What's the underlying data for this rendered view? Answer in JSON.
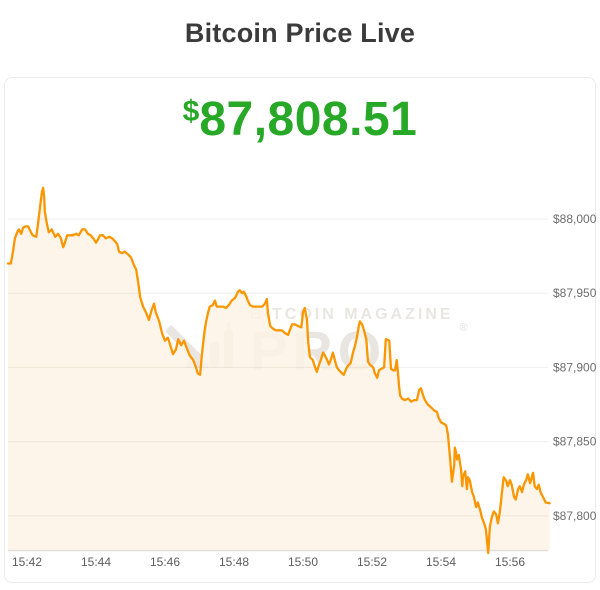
{
  "header": {
    "title": "Bitcoin Price Live"
  },
  "price": {
    "currency_symbol": "$",
    "value": "87,808.51",
    "color": "#27a827"
  },
  "watermark": {
    "line1": "BITCOIN MAGAZINE",
    "line2": "PRO",
    "registered": "®"
  },
  "colors": {
    "line": "#fa9600",
    "fill": "#fcf3e4",
    "grid": "#edebe8",
    "axis_line": "#e3ded7",
    "y_label": "#6d6d6d",
    "x_label": "#5c5c5c",
    "title": "#3b3b3b",
    "price_green": "#27a827",
    "watermark_gray": "#e9e6e2",
    "card_border": "#ececec"
  },
  "chart_data": {
    "type": "area",
    "title": "Bitcoin price, live intraday",
    "xlabel": "",
    "ylabel": "",
    "legend": "none",
    "grid": true,
    "y_axis_position": "right",
    "x_unit": "seconds after 15:40:00",
    "x_range": [
      87,
      1029
    ],
    "y_range": [
      87777,
      88033
    ],
    "x_ticks": [
      {
        "t": 120,
        "label": "15:42"
      },
      {
        "t": 240,
        "label": "15:44"
      },
      {
        "t": 360,
        "label": "15:46"
      },
      {
        "t": 480,
        "label": "15:48"
      },
      {
        "t": 600,
        "label": "15:50"
      },
      {
        "t": 720,
        "label": "15:52"
      },
      {
        "t": 840,
        "label": "15:54"
      },
      {
        "t": 960,
        "label": "15:56"
      }
    ],
    "y_ticks": [
      {
        "value": 88000,
        "label": "$88,000"
      },
      {
        "value": 87950,
        "label": "$87,950"
      },
      {
        "value": 87900,
        "label": "$87,900"
      },
      {
        "value": 87850,
        "label": "$87,850"
      },
      {
        "value": 87800,
        "label": "$87,800"
      }
    ],
    "points": [
      [
        87,
        87970
      ],
      [
        92,
        87970
      ],
      [
        96,
        87979
      ],
      [
        99,
        87987
      ],
      [
        103,
        87991
      ],
      [
        106,
        87993
      ],
      [
        110,
        87990
      ],
      [
        113,
        87994
      ],
      [
        117,
        87995
      ],
      [
        122,
        87995
      ],
      [
        127,
        87991
      ],
      [
        130,
        87989
      ],
      [
        136,
        87988
      ],
      [
        139,
        87996
      ],
      [
        143,
        88009
      ],
      [
        146,
        88018
      ],
      [
        148,
        88021
      ],
      [
        150,
        88015
      ],
      [
        151,
        88005
      ],
      [
        155,
        87996
      ],
      [
        158,
        87991
      ],
      [
        163,
        87993
      ],
      [
        169,
        87988
      ],
      [
        174,
        87990
      ],
      [
        179,
        87987
      ],
      [
        183,
        87981
      ],
      [
        186,
        87984
      ],
      [
        190,
        87989
      ],
      [
        195,
        87989
      ],
      [
        200,
        87989
      ],
      [
        205,
        87990
      ],
      [
        210,
        87989
      ],
      [
        216,
        87993
      ],
      [
        221,
        87993
      ],
      [
        226,
        87990
      ],
      [
        231,
        87989
      ],
      [
        237,
        87986
      ],
      [
        240,
        87984
      ],
      [
        243,
        87986
      ],
      [
        247,
        87989
      ],
      [
        252,
        87989
      ],
      [
        257,
        87987
      ],
      [
        263,
        87988
      ],
      [
        268,
        87987
      ],
      [
        273,
        87985
      ],
      [
        277,
        87983
      ],
      [
        280,
        87978
      ],
      [
        285,
        87977
      ],
      [
        290,
        87978
      ],
      [
        296,
        87976
      ],
      [
        301,
        87974
      ],
      [
        306,
        87969
      ],
      [
        310,
        87966
      ],
      [
        313,
        87958
      ],
      [
        317,
        87947
      ],
      [
        322,
        87941
      ],
      [
        327,
        87937
      ],
      [
        332,
        87932
      ],
      [
        337,
        87939
      ],
      [
        341,
        87943
      ],
      [
        344,
        87937
      ],
      [
        350,
        87931
      ],
      [
        355,
        87923
      ],
      [
        360,
        87918
      ],
      [
        365,
        87920
      ],
      [
        370,
        87914
      ],
      [
        374,
        87909
      ],
      [
        379,
        87912
      ],
      [
        383,
        87919
      ],
      [
        388,
        87915
      ],
      [
        393,
        87918
      ],
      [
        398,
        87913
      ],
      [
        403,
        87908
      ],
      [
        409,
        87905
      ],
      [
        414,
        87900
      ],
      [
        417,
        87896
      ],
      [
        421,
        87895
      ],
      [
        424,
        87908
      ],
      [
        428,
        87922
      ],
      [
        431,
        87930
      ],
      [
        435,
        87937
      ],
      [
        438,
        87941
      ],
      [
        443,
        87942
      ],
      [
        447,
        87945
      ],
      [
        450,
        87941
      ],
      [
        456,
        87941
      ],
      [
        461,
        87941
      ],
      [
        466,
        87940
      ],
      [
        471,
        87942
      ],
      [
        476,
        87945
      ],
      [
        482,
        87947
      ],
      [
        487,
        87951
      ],
      [
        490,
        87952
      ],
      [
        494,
        87950
      ],
      [
        497,
        87951
      ],
      [
        501,
        87948
      ],
      [
        504,
        87945
      ],
      [
        508,
        87942
      ],
      [
        513,
        87941
      ],
      [
        518,
        87941
      ],
      [
        523,
        87941
      ],
      [
        529,
        87941
      ],
      [
        534,
        87943
      ],
      [
        537,
        87946
      ],
      [
        539,
        87937
      ],
      [
        543,
        87928
      ],
      [
        548,
        87926
      ],
      [
        553,
        87925
      ],
      [
        558,
        87925
      ],
      [
        563,
        87925
      ],
      [
        569,
        87923
      ],
      [
        574,
        87922
      ],
      [
        577,
        87925
      ],
      [
        581,
        87929
      ],
      [
        586,
        87929
      ],
      [
        591,
        87928
      ],
      [
        597,
        87927
      ],
      [
        600,
        87937
      ],
      [
        603,
        87940
      ],
      [
        607,
        87932
      ],
      [
        609,
        87917
      ],
      [
        612,
        87907
      ],
      [
        617,
        87905
      ],
      [
        621,
        87900
      ],
      [
        624,
        87897
      ],
      [
        628,
        87902
      ],
      [
        631,
        87905
      ],
      [
        635,
        87910
      ],
      [
        638,
        87908
      ],
      [
        642,
        87905
      ],
      [
        645,
        87902
      ],
      [
        649,
        87906
      ],
      [
        652,
        87910
      ],
      [
        656,
        87904
      ],
      [
        659,
        87900
      ],
      [
        663,
        87898
      ],
      [
        668,
        87896
      ],
      [
        671,
        87895
      ],
      [
        675,
        87899
      ],
      [
        678,
        87901
      ],
      [
        683,
        87903
      ],
      [
        687,
        87910
      ],
      [
        690,
        87914
      ],
      [
        694,
        87921
      ],
      [
        697,
        87928
      ],
      [
        699,
        87931
      ],
      [
        703,
        87929
      ],
      [
        706,
        87925
      ],
      [
        710,
        87919
      ],
      [
        713,
        87904
      ],
      [
        716,
        87902
      ],
      [
        722,
        87900
      ],
      [
        725,
        87896
      ],
      [
        729,
        87893
      ],
      [
        732,
        87898
      ],
      [
        736,
        87899
      ],
      [
        741,
        87900
      ],
      [
        744,
        87919
      ],
      [
        750,
        87918
      ],
      [
        753,
        87899
      ],
      [
        757,
        87898
      ],
      [
        760,
        87898
      ],
      [
        763,
        87905
      ],
      [
        765,
        87897
      ],
      [
        767,
        87888
      ],
      [
        769,
        87881
      ],
      [
        772,
        87879
      ],
      [
        777,
        87878
      ],
      [
        783,
        87879
      ],
      [
        788,
        87877
      ],
      [
        793,
        87878
      ],
      [
        798,
        87878
      ],
      [
        802,
        87885
      ],
      [
        805,
        87886
      ],
      [
        809,
        87881
      ],
      [
        812,
        87878
      ],
      [
        817,
        87875
      ],
      [
        823,
        87873
      ],
      [
        828,
        87871
      ],
      [
        833,
        87870
      ],
      [
        836,
        87866
      ],
      [
        840,
        87863
      ],
      [
        845,
        87862
      ],
      [
        849,
        87861
      ],
      [
        852,
        87855
      ],
      [
        856,
        87838
      ],
      [
        859,
        87823
      ],
      [
        863,
        87834
      ],
      [
        864,
        87846
      ],
      [
        866,
        87843
      ],
      [
        868,
        87838
      ],
      [
        871,
        87841
      ],
      [
        875,
        87831
      ],
      [
        877,
        87820
      ],
      [
        878,
        87826
      ],
      [
        882,
        87830
      ],
      [
        885,
        87818
      ],
      [
        887,
        87826
      ],
      [
        890,
        87824
      ],
      [
        894,
        87816
      ],
      [
        897,
        87813
      ],
      [
        901,
        87806
      ],
      [
        904,
        87809
      ],
      [
        908,
        87804
      ],
      [
        911,
        87799
      ],
      [
        915,
        87795
      ],
      [
        918,
        87791
      ],
      [
        922,
        87775
      ],
      [
        923,
        87780
      ],
      [
        925,
        87793
      ],
      [
        929,
        87800
      ],
      [
        932,
        87803
      ],
      [
        936,
        87801
      ],
      [
        939,
        87795
      ],
      [
        942,
        87802
      ],
      [
        946,
        87816
      ],
      [
        949,
        87826
      ],
      [
        953,
        87824
      ],
      [
        956,
        87820
      ],
      [
        960,
        87824
      ],
      [
        963,
        87821
      ],
      [
        967,
        87813
      ],
      [
        970,
        87811
      ],
      [
        974,
        87818
      ],
      [
        977,
        87820
      ],
      [
        981,
        87816
      ],
      [
        984,
        87821
      ],
      [
        988,
        87824
      ],
      [
        991,
        87828
      ],
      [
        995,
        87822
      ],
      [
        1000,
        87829
      ],
      [
        1003,
        87820
      ],
      [
        1007,
        87818
      ],
      [
        1010,
        87821
      ],
      [
        1013,
        87816
      ],
      [
        1017,
        87813
      ],
      [
        1022,
        87809
      ],
      [
        1029,
        87808.51
      ]
    ]
  }
}
